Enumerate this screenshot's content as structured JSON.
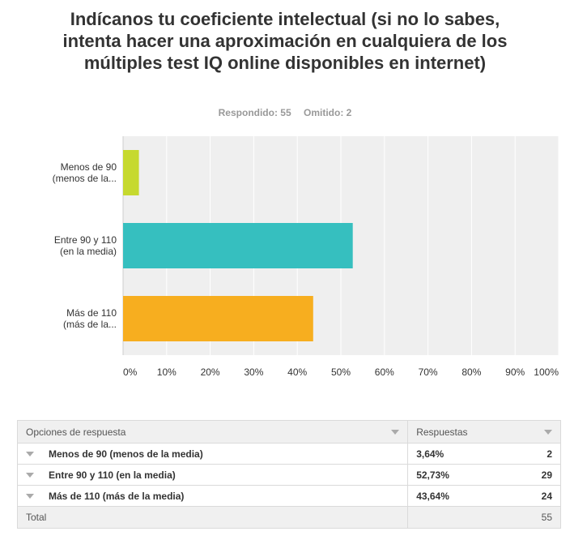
{
  "question": {
    "title": "Indícanos tu coeficiente intelectual (si no lo sabes, intenta hacer una aproximación en cualquiera de los múltiples test IQ online disponibles en internet)",
    "answered": "Respondido: 55",
    "skipped": "Omitido: 2"
  },
  "chart_data": {
    "type": "bar",
    "orientation": "horizontal",
    "categories": [
      "Menos de 90 (menos de la...",
      "Entre 90 y 110 (en la media)",
      "Más de 110 (más de la..."
    ],
    "category_label_lines": [
      [
        "Menos de 90",
        "(menos de la..."
      ],
      [
        "Entre 90 y 110",
        "(en la media)"
      ],
      [
        "Más de 110",
        "(más de la..."
      ]
    ],
    "values": [
      3.64,
      52.73,
      43.64
    ],
    "colors": [
      "#c6d92f",
      "#36bfbf",
      "#f7ae1f"
    ],
    "xlim": [
      0,
      100
    ],
    "xticks": [
      0,
      10,
      20,
      30,
      40,
      50,
      60,
      70,
      80,
      90,
      100
    ],
    "xtick_labels": [
      "0%",
      "10%",
      "20%",
      "30%",
      "40%",
      "50%",
      "60%",
      "70%",
      "80%",
      "90%",
      "100%"
    ],
    "grid": true,
    "plot_background": "#efefef"
  },
  "table": {
    "col_options": "Opciones de respuesta",
    "col_responses": "Respuestas",
    "rows": [
      {
        "label": "Menos de 90 (menos de la media)",
        "percent": "3,64%",
        "count": "2"
      },
      {
        "label": "Entre 90 y 110 (en la media)",
        "percent": "52,73%",
        "count": "29"
      },
      {
        "label": "Más de 110 (más de la media)",
        "percent": "43,64%",
        "count": "24"
      }
    ],
    "total_label": "Total",
    "total_count": "55"
  }
}
